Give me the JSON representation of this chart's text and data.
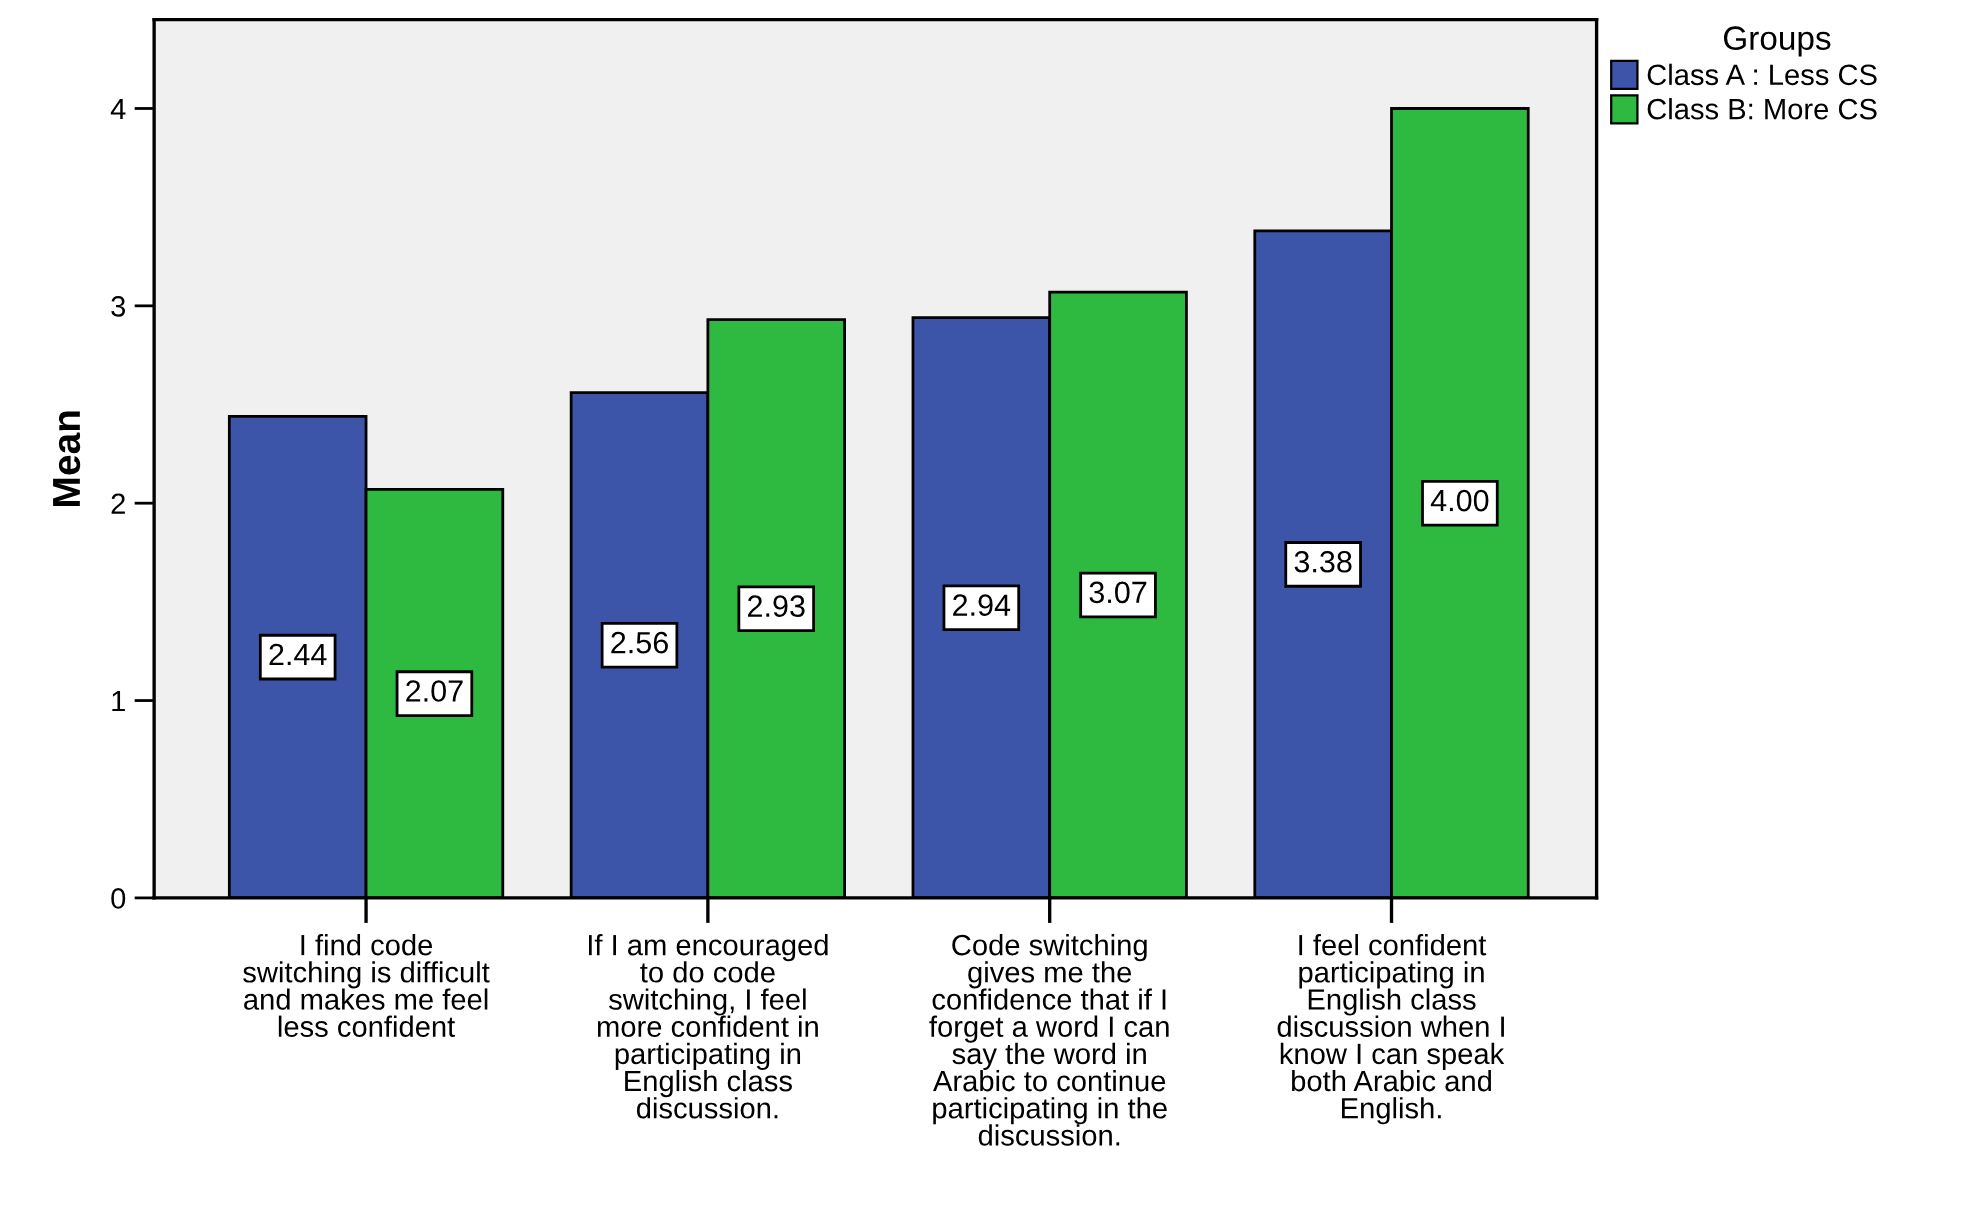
{
  "chart_data": {
    "type": "bar",
    "categories": [
      "I find code\nswitching is difficult\nand makes me feel\nless confident",
      "If I am encouraged\nto do code\nswitching, I feel\nmore confident in\nparticipating in\nEnglish class\ndiscussion.",
      "Code switching\ngives me the\nconfidence that if I\nforget a word I can\nsay the word in\nArabic to continue\nparticipating in the\ndiscussion.",
      "I feel confident\nparticipating in\nEnglish class\ndiscussion when I\nknow I can speak\nboth Arabic and\nEnglish."
    ],
    "series": [
      {
        "name": "Class A : Less CS",
        "color": "#3d55a9",
        "values": [
          2.44,
          2.56,
          2.94,
          3.38
        ],
        "value_labels": [
          "2.44",
          "2.56",
          "2.94",
          "3.38"
        ]
      },
      {
        "name": "Class B: More CS",
        "color": "#2eb940",
        "values": [
          2.07,
          2.93,
          3.07,
          4.0
        ],
        "value_labels": [
          "2.07",
          "2.93",
          "3.07",
          "4.00"
        ]
      }
    ],
    "ylabel": "Mean",
    "ylim": [
      0,
      4.45
    ],
    "yticks": [
      0,
      1,
      2,
      3,
      4
    ],
    "legend": "top right",
    "legend_title": "Groups"
  }
}
